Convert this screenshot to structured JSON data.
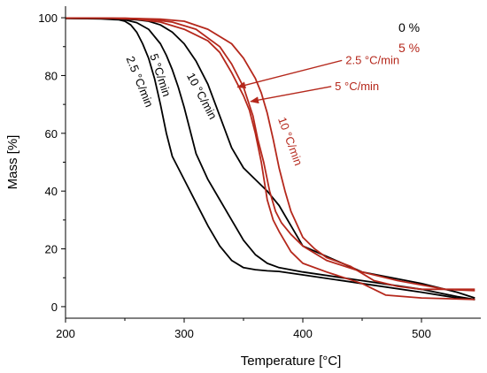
{
  "chart_data": {
    "type": "line",
    "xlabel": "Temperature [°C]",
    "ylabel": "Mass [%]",
    "xlim": [
      200,
      550
    ],
    "ylim": [
      -4,
      104
    ],
    "xticks": [
      200,
      300,
      400,
      500
    ],
    "yticks": [
      0,
      20,
      40,
      60,
      80,
      100
    ],
    "grid": false,
    "legend": [
      {
        "label": "0 %",
        "color": "#000000"
      },
      {
        "label": "5 %",
        "color": "#b5281c"
      }
    ],
    "colors": {
      "neat": "#000000",
      "composite": "#b5281c"
    },
    "series": [
      {
        "group": "0 %",
        "rate": "2.5 °C/min",
        "x": [
          200,
          230,
          245,
          250,
          255,
          260,
          265,
          270,
          275,
          280,
          285,
          290,
          300,
          310,
          320,
          330,
          340,
          350,
          360,
          370,
          380,
          400,
          450,
          500,
          530,
          545
        ],
        "y": [
          99.8,
          99.6,
          99.3,
          98.8,
          97.5,
          95,
          91,
          86,
          79,
          70,
          60,
          52,
          44,
          36,
          28,
          21,
          16,
          13.5,
          12.8,
          12.4,
          12.2,
          11,
          8,
          5,
          3,
          2.5
        ]
      },
      {
        "group": "0 %",
        "rate": "5 °C/min",
        "x": [
          200,
          240,
          250,
          260,
          270,
          280,
          285,
          290,
          295,
          300,
          305,
          310,
          320,
          330,
          340,
          350,
          360,
          370,
          380,
          400,
          450,
          500,
          530,
          545
        ],
        "y": [
          99.8,
          99.7,
          99.3,
          98.3,
          96,
          91,
          87,
          82,
          76,
          69,
          61,
          53,
          44,
          37,
          30,
          23,
          18,
          15,
          13.5,
          12,
          9,
          6,
          3.5,
          2.5
        ]
      },
      {
        "group": "0 %",
        "rate": "10 °C/min",
        "x": [
          200,
          240,
          260,
          270,
          280,
          290,
          300,
          310,
          320,
          330,
          340,
          350,
          360,
          370,
          380,
          400,
          450,
          500,
          530,
          545
        ],
        "y": [
          99.8,
          99.7,
          99.3,
          98.8,
          97.5,
          95,
          91,
          85,
          77,
          66,
          55,
          48,
          44,
          40,
          35,
          21,
          12,
          8,
          5,
          3
        ]
      },
      {
        "group": "5 %",
        "rate": "2.5 °C/min",
        "x": [
          200,
          240,
          260,
          280,
          300,
          320,
          330,
          340,
          350,
          355,
          360,
          365,
          370,
          375,
          380,
          390,
          400,
          420,
          450,
          470,
          500,
          545
        ],
        "y": [
          99.9,
          99.8,
          99.5,
          98.5,
          96,
          92,
          88,
          81,
          73,
          68,
          60,
          50,
          37,
          30,
          26,
          19,
          15,
          12,
          8,
          4,
          3,
          2.5
        ]
      },
      {
        "group": "5 %",
        "rate": "5 °C/min",
        "x": [
          200,
          250,
          270,
          290,
          310,
          330,
          340,
          350,
          358,
          362,
          367,
          372,
          377,
          382,
          390,
          400,
          420,
          450,
          480,
          520,
          545
        ],
        "y": [
          99.9,
          99.8,
          99.5,
          98.5,
          96,
          90,
          84,
          76,
          66,
          58,
          50,
          40,
          33,
          29,
          25,
          21,
          16,
          12,
          9,
          6,
          5.5
        ]
      },
      {
        "group": "5 %",
        "rate": "10 °C/min",
        "x": [
          200,
          250,
          280,
          300,
          320,
          340,
          350,
          360,
          365,
          370,
          375,
          380,
          385,
          390,
          400,
          410,
          420,
          440,
          460,
          480,
          500,
          545
        ],
        "y": [
          99.9,
          99.8,
          99.5,
          98.8,
          96,
          91,
          86,
          79,
          74,
          67,
          58,
          48,
          40,
          33,
          24,
          20,
          17,
          14,
          9,
          7,
          6,
          6
        ]
      }
    ],
    "annotations": [
      {
        "text": "2.5 °C/min",
        "group": "0 %",
        "x": 251,
        "y": 86,
        "rotate": 68
      },
      {
        "text": "5 °C/min",
        "group": "0 %",
        "x": 271,
        "y": 87,
        "rotate": 72
      },
      {
        "text": "10 °C/min",
        "group": "0 %",
        "x": 302,
        "y": 80,
        "rotate": 62
      },
      {
        "text": "10 °C/min",
        "group": "5 %",
        "x": 379,
        "y": 65,
        "rotate": 70
      },
      {
        "text": "2.5 °C/min",
        "group": "5 %",
        "x": 436,
        "y": 84,
        "rotate": 0,
        "arrow_to": [
          345,
          76
        ]
      },
      {
        "text": "5 °C/min",
        "group": "5 %",
        "x": 427,
        "y": 75,
        "rotate": 0,
        "arrow_to": [
          356,
          71
        ]
      }
    ]
  }
}
